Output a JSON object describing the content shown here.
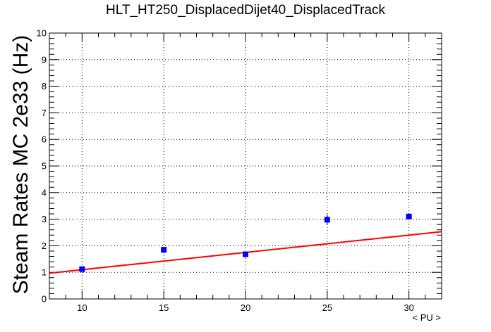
{
  "chart_data": {
    "type": "scatter",
    "title": "HLT_HT250_DisplacedDijet40_DisplacedTrack",
    "xlabel": "< PU >",
    "ylabel": "Steam Rates MC 2e33 (Hz)",
    "xlim": [
      8,
      32
    ],
    "ylim": [
      0,
      10
    ],
    "x_ticks": [
      10,
      15,
      20,
      25,
      30
    ],
    "y_ticks": [
      0,
      1,
      2,
      3,
      4,
      5,
      6,
      7,
      8,
      9,
      10
    ],
    "grid": true,
    "series": [
      {
        "marker": "square",
        "color": "#0000ff",
        "x": [
          10,
          15,
          20,
          25,
          30
        ],
        "y": [
          1.12,
          1.85,
          1.68,
          2.98,
          3.1
        ],
        "yerr": [
          0.07,
          0.1,
          0.08,
          0.2,
          0.1
        ]
      }
    ],
    "fit": {
      "type": "linear",
      "color": "#ff0000",
      "x": [
        8,
        32
      ],
      "y": [
        0.97,
        2.53
      ]
    }
  }
}
